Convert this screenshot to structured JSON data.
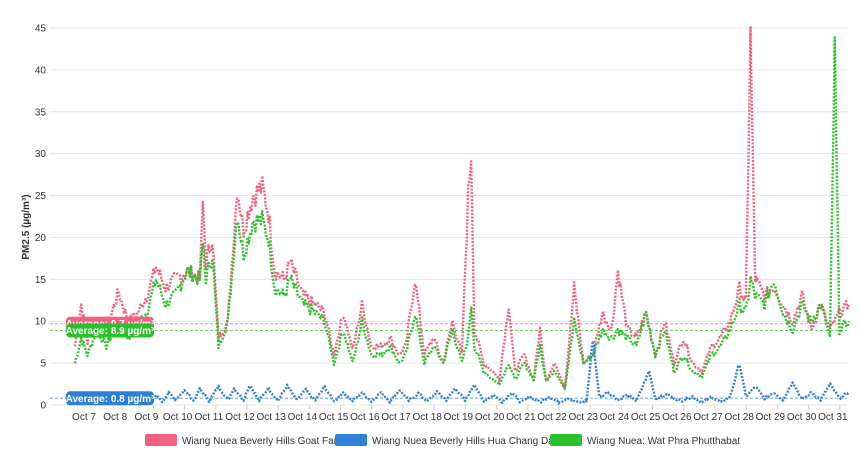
{
  "chart_data": {
    "type": "line",
    "ylabel": "PM2.5 (µg/m³)",
    "ylim": [
      0,
      45
    ],
    "yticks": [
      0,
      5,
      10,
      15,
      20,
      25,
      30,
      35,
      40,
      45
    ],
    "categories": [
      "Oct 7",
      "Oct 8",
      "Oct 9",
      "Oct 10",
      "Oct 11",
      "Oct 12",
      "Oct 13",
      "Oct 14",
      "Oct 15",
      "Oct 16",
      "Oct 17",
      "Oct 18",
      "Oct 19",
      "Oct 20",
      "Oct 21",
      "Oct 22",
      "Oct 23",
      "Oct 24",
      "Oct 25",
      "Oct 26",
      "Oct 27",
      "Oct 28",
      "Oct 29",
      "Oct 30",
      "Oct 31"
    ],
    "grid": "horizontal",
    "legend_position": "bottom",
    "series": [
      {
        "name": "Wiang Nuea Beverly Hills Goat Farm",
        "color": "#f0607f",
        "average_label": "Average: 9.7 µg/m³",
        "average": 9.7,
        "keypoints": [
          [
            0,
            7
          ],
          [
            0.2,
            12
          ],
          [
            0.4,
            7.5
          ],
          [
            0.7,
            10
          ],
          [
            1,
            9
          ],
          [
            1.4,
            13.5
          ],
          [
            1.7,
            10
          ],
          [
            2,
            11
          ],
          [
            2.3,
            13
          ],
          [
            2.6,
            16.5
          ],
          [
            2.9,
            14
          ],
          [
            3.2,
            15
          ],
          [
            3.6,
            16
          ],
          [
            4,
            15
          ],
          [
            4.1,
            24
          ],
          [
            4.2,
            17
          ],
          [
            4.4,
            20
          ],
          [
            4.6,
            8
          ],
          [
            4.9,
            10
          ],
          [
            5.2,
            26
          ],
          [
            5.4,
            21
          ],
          [
            5.7,
            25
          ],
          [
            6,
            26
          ],
          [
            6.2,
            23
          ],
          [
            6.4,
            16
          ],
          [
            6.7,
            15
          ],
          [
            6.9,
            17
          ],
          [
            7.3,
            13
          ],
          [
            7.7,
            12
          ],
          [
            8,
            11
          ],
          [
            8.3,
            6
          ],
          [
            8.6,
            11
          ],
          [
            8.9,
            6.5
          ],
          [
            9.2,
            12
          ],
          [
            9.5,
            7
          ],
          [
            9.8,
            7
          ],
          [
            10.1,
            8
          ],
          [
            10.4,
            6
          ],
          [
            10.6,
            7
          ],
          [
            10.9,
            15
          ],
          [
            11.2,
            6
          ],
          [
            11.5,
            8
          ],
          [
            11.8,
            5
          ],
          [
            12.1,
            10
          ],
          [
            12.4,
            6
          ],
          [
            12.6,
            25
          ],
          [
            12.7,
            30
          ],
          [
            12.8,
            9
          ],
          [
            13.1,
            5
          ],
          [
            13.4,
            4
          ],
          [
            13.6,
            3
          ],
          [
            13.9,
            12
          ],
          [
            14.1,
            4
          ],
          [
            14.4,
            6
          ],
          [
            14.7,
            3
          ],
          [
            14.9,
            9
          ],
          [
            15.1,
            3
          ],
          [
            15.4,
            5
          ],
          [
            15.7,
            2
          ],
          [
            16,
            14
          ],
          [
            16.3,
            5
          ],
          [
            16.6,
            6
          ],
          [
            16.9,
            11
          ],
          [
            17.2,
            9
          ],
          [
            17.4,
            16
          ],
          [
            17.7,
            9
          ],
          [
            18,
            8
          ],
          [
            18.3,
            11
          ],
          [
            18.6,
            6
          ],
          [
            18.9,
            10
          ],
          [
            19.2,
            5
          ],
          [
            19.5,
            8
          ],
          [
            19.8,
            5
          ],
          [
            20.1,
            4
          ],
          [
            20.4,
            7
          ],
          [
            20.7,
            8
          ],
          [
            21,
            10
          ],
          [
            21.3,
            14
          ],
          [
            21.5,
            12
          ],
          [
            21.65,
            44
          ],
          [
            21.8,
            15
          ],
          [
            22.1,
            13
          ],
          [
            22.4,
            14
          ],
          [
            22.7,
            12
          ],
          [
            23,
            10
          ],
          [
            23.3,
            13
          ],
          [
            23.6,
            9
          ],
          [
            23.9,
            12
          ],
          [
            24.2,
            9
          ],
          [
            24.5,
            11
          ],
          [
            24.8,
            12
          ]
        ]
      },
      {
        "name": "Wiang Nuea Beverly Hills Hua Chang Dam",
        "color": "#2f7fd6",
        "average_label": "Average: 0.8 µg/m³",
        "average": 0.8,
        "keypoints": [
          [
            0,
            0.2
          ],
          [
            0.3,
            0.4
          ],
          [
            0.6,
            0.2
          ],
          [
            1,
            0.3
          ],
          [
            1.3,
            0.5
          ],
          [
            1.6,
            0.2
          ],
          [
            2,
            0.4
          ],
          [
            2.2,
            1
          ],
          [
            2.4,
            0.3
          ],
          [
            2.6,
            1.2
          ],
          [
            2.8,
            0.4
          ],
          [
            3,
            1.5
          ],
          [
            3.2,
            0.5
          ],
          [
            3.5,
            1.8
          ],
          [
            3.8,
            0.5
          ],
          [
            4,
            1.9
          ],
          [
            4.3,
            0.5
          ],
          [
            4.6,
            2.2
          ],
          [
            4.9,
            0.6
          ],
          [
            5.1,
            2
          ],
          [
            5.4,
            0.6
          ],
          [
            5.6,
            2.4
          ],
          [
            5.9,
            0.5
          ],
          [
            6.2,
            2
          ],
          [
            6.5,
            0.5
          ],
          [
            6.8,
            2.3
          ],
          [
            7.1,
            0.6
          ],
          [
            7.4,
            1.8
          ],
          [
            7.7,
            0.5
          ],
          [
            8,
            2.2
          ],
          [
            8.3,
            0.4
          ],
          [
            8.6,
            1.5
          ],
          [
            8.9,
            0.5
          ],
          [
            9.2,
            1.5
          ],
          [
            9.5,
            0.4
          ],
          [
            9.8,
            1.5
          ],
          [
            10.1,
            0.4
          ],
          [
            10.4,
            1.8
          ],
          [
            10.7,
            0.5
          ],
          [
            11,
            1.4
          ],
          [
            11.3,
            0.4
          ],
          [
            11.6,
            1.6
          ],
          [
            11.9,
            0.6
          ],
          [
            12.2,
            2
          ],
          [
            12.5,
            0.5
          ],
          [
            12.8,
            2.5
          ],
          [
            13.1,
            0.4
          ],
          [
            13.4,
            1.2
          ],
          [
            13.7,
            0.4
          ],
          [
            14,
            1.5
          ],
          [
            14.3,
            0.3
          ],
          [
            14.6,
            1
          ],
          [
            14.9,
            0.3
          ],
          [
            15.2,
            1
          ],
          [
            15.5,
            0.3
          ],
          [
            15.8,
            0.8
          ],
          [
            16.1,
            0.3
          ],
          [
            16.4,
            0.5
          ],
          [
            16.6,
            8
          ],
          [
            16.8,
            1
          ],
          [
            17.1,
            1.5
          ],
          [
            17.4,
            0.6
          ],
          [
            17.7,
            1.2
          ],
          [
            18,
            0.5
          ],
          [
            18.4,
            4
          ],
          [
            18.6,
            0.8
          ],
          [
            19,
            1.2
          ],
          [
            19.4,
            0.5
          ],
          [
            19.8,
            1
          ],
          [
            20.1,
            0.3
          ],
          [
            20.4,
            1
          ],
          [
            20.7,
            0.3
          ],
          [
            21,
            1
          ],
          [
            21.3,
            5
          ],
          [
            21.5,
            1
          ],
          [
            21.8,
            2.2
          ],
          [
            22.1,
            0.8
          ],
          [
            22.4,
            1.5
          ],
          [
            22.7,
            0.6
          ],
          [
            23,
            2.8
          ],
          [
            23.3,
            0.6
          ],
          [
            23.6,
            1.5
          ],
          [
            23.9,
            0.6
          ],
          [
            24.2,
            2.5
          ],
          [
            24.5,
            0.8
          ],
          [
            24.8,
            1.5
          ]
        ]
      },
      {
        "name": "Wiang Nuea: Wat Phra Phutthabat",
        "color": "#2dc02d",
        "average_label": "Average: 8.9 µg/m³",
        "average": 8.9,
        "keypoints": [
          [
            0,
            5
          ],
          [
            0.2,
            8
          ],
          [
            0.4,
            6
          ],
          [
            0.7,
            9
          ],
          [
            1,
            7
          ],
          [
            1.4,
            10
          ],
          [
            1.7,
            8
          ],
          [
            2,
            10
          ],
          [
            2.3,
            11
          ],
          [
            2.6,
            15
          ],
          [
            2.9,
            12
          ],
          [
            3.2,
            13
          ],
          [
            3.6,
            16
          ],
          [
            4,
            15
          ],
          [
            4.1,
            19
          ],
          [
            4.2,
            15
          ],
          [
            4.4,
            18
          ],
          [
            4.6,
            7
          ],
          [
            4.9,
            10
          ],
          [
            5.2,
            23
          ],
          [
            5.4,
            18
          ],
          [
            5.7,
            22
          ],
          [
            6,
            22
          ],
          [
            6.2,
            20
          ],
          [
            6.4,
            14
          ],
          [
            6.7,
            13
          ],
          [
            6.9,
            15
          ],
          [
            7.3,
            12
          ],
          [
            7.7,
            11
          ],
          [
            8,
            10
          ],
          [
            8.3,
            5
          ],
          [
            8.6,
            9
          ],
          [
            8.9,
            5
          ],
          [
            9.2,
            10
          ],
          [
            9.5,
            6
          ],
          [
            9.8,
            6
          ],
          [
            10.1,
            7
          ],
          [
            10.4,
            5
          ],
          [
            10.6,
            6
          ],
          [
            10.9,
            11
          ],
          [
            11.2,
            5
          ],
          [
            11.5,
            7
          ],
          [
            11.8,
            5
          ],
          [
            12.1,
            9
          ],
          [
            12.4,
            5
          ],
          [
            12.6,
            8
          ],
          [
            12.7,
            12
          ],
          [
            12.8,
            7
          ],
          [
            13.1,
            4
          ],
          [
            13.4,
            3
          ],
          [
            13.6,
            2.5
          ],
          [
            13.9,
            5
          ],
          [
            14.1,
            3
          ],
          [
            14.4,
            5
          ],
          [
            14.7,
            3
          ],
          [
            14.9,
            7
          ],
          [
            15.1,
            3
          ],
          [
            15.4,
            4
          ],
          [
            15.7,
            2
          ],
          [
            16,
            10
          ],
          [
            16.3,
            5
          ],
          [
            16.6,
            6
          ],
          [
            16.9,
            9
          ],
          [
            17.2,
            8
          ],
          [
            17.4,
            9
          ],
          [
            17.7,
            8
          ],
          [
            18,
            7
          ],
          [
            18.3,
            11
          ],
          [
            18.6,
            6
          ],
          [
            18.9,
            9
          ],
          [
            19.2,
            4
          ],
          [
            19.5,
            6
          ],
          [
            19.8,
            4
          ],
          [
            20.1,
            3.5
          ],
          [
            20.4,
            6
          ],
          [
            20.7,
            7
          ],
          [
            21,
            9
          ],
          [
            21.3,
            12
          ],
          [
            21.5,
            11
          ],
          [
            21.65,
            15
          ],
          [
            21.8,
            13
          ],
          [
            22.1,
            12
          ],
          [
            22.4,
            15
          ],
          [
            22.7,
            11
          ],
          [
            23,
            9
          ],
          [
            23.3,
            12
          ],
          [
            23.6,
            10
          ],
          [
            23.9,
            12
          ],
          [
            24.2,
            8
          ],
          [
            24.35,
            42
          ],
          [
            24.5,
            9
          ],
          [
            24.8,
            10
          ]
        ]
      }
    ]
  }
}
